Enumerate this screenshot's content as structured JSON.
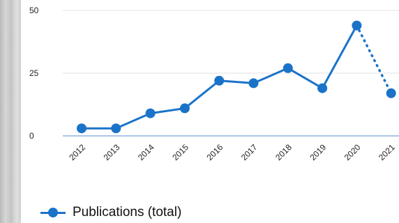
{
  "chart_data": {
    "type": "line",
    "categories": [
      "2012",
      "2013",
      "2014",
      "2015",
      "2016",
      "2017",
      "2018",
      "2019",
      "2020",
      "2021"
    ],
    "series": [
      {
        "name": "Publications (total)",
        "values": [
          3,
          3,
          9,
          11,
          22,
          21,
          27,
          19,
          44,
          17
        ],
        "color": "#1a73c8",
        "dotted_from_index": 8
      }
    ],
    "ylim": [
      0,
      50
    ],
    "yticks": [
      "0",
      "25",
      "50"
    ],
    "grid": true,
    "legend": "bottom-left"
  }
}
